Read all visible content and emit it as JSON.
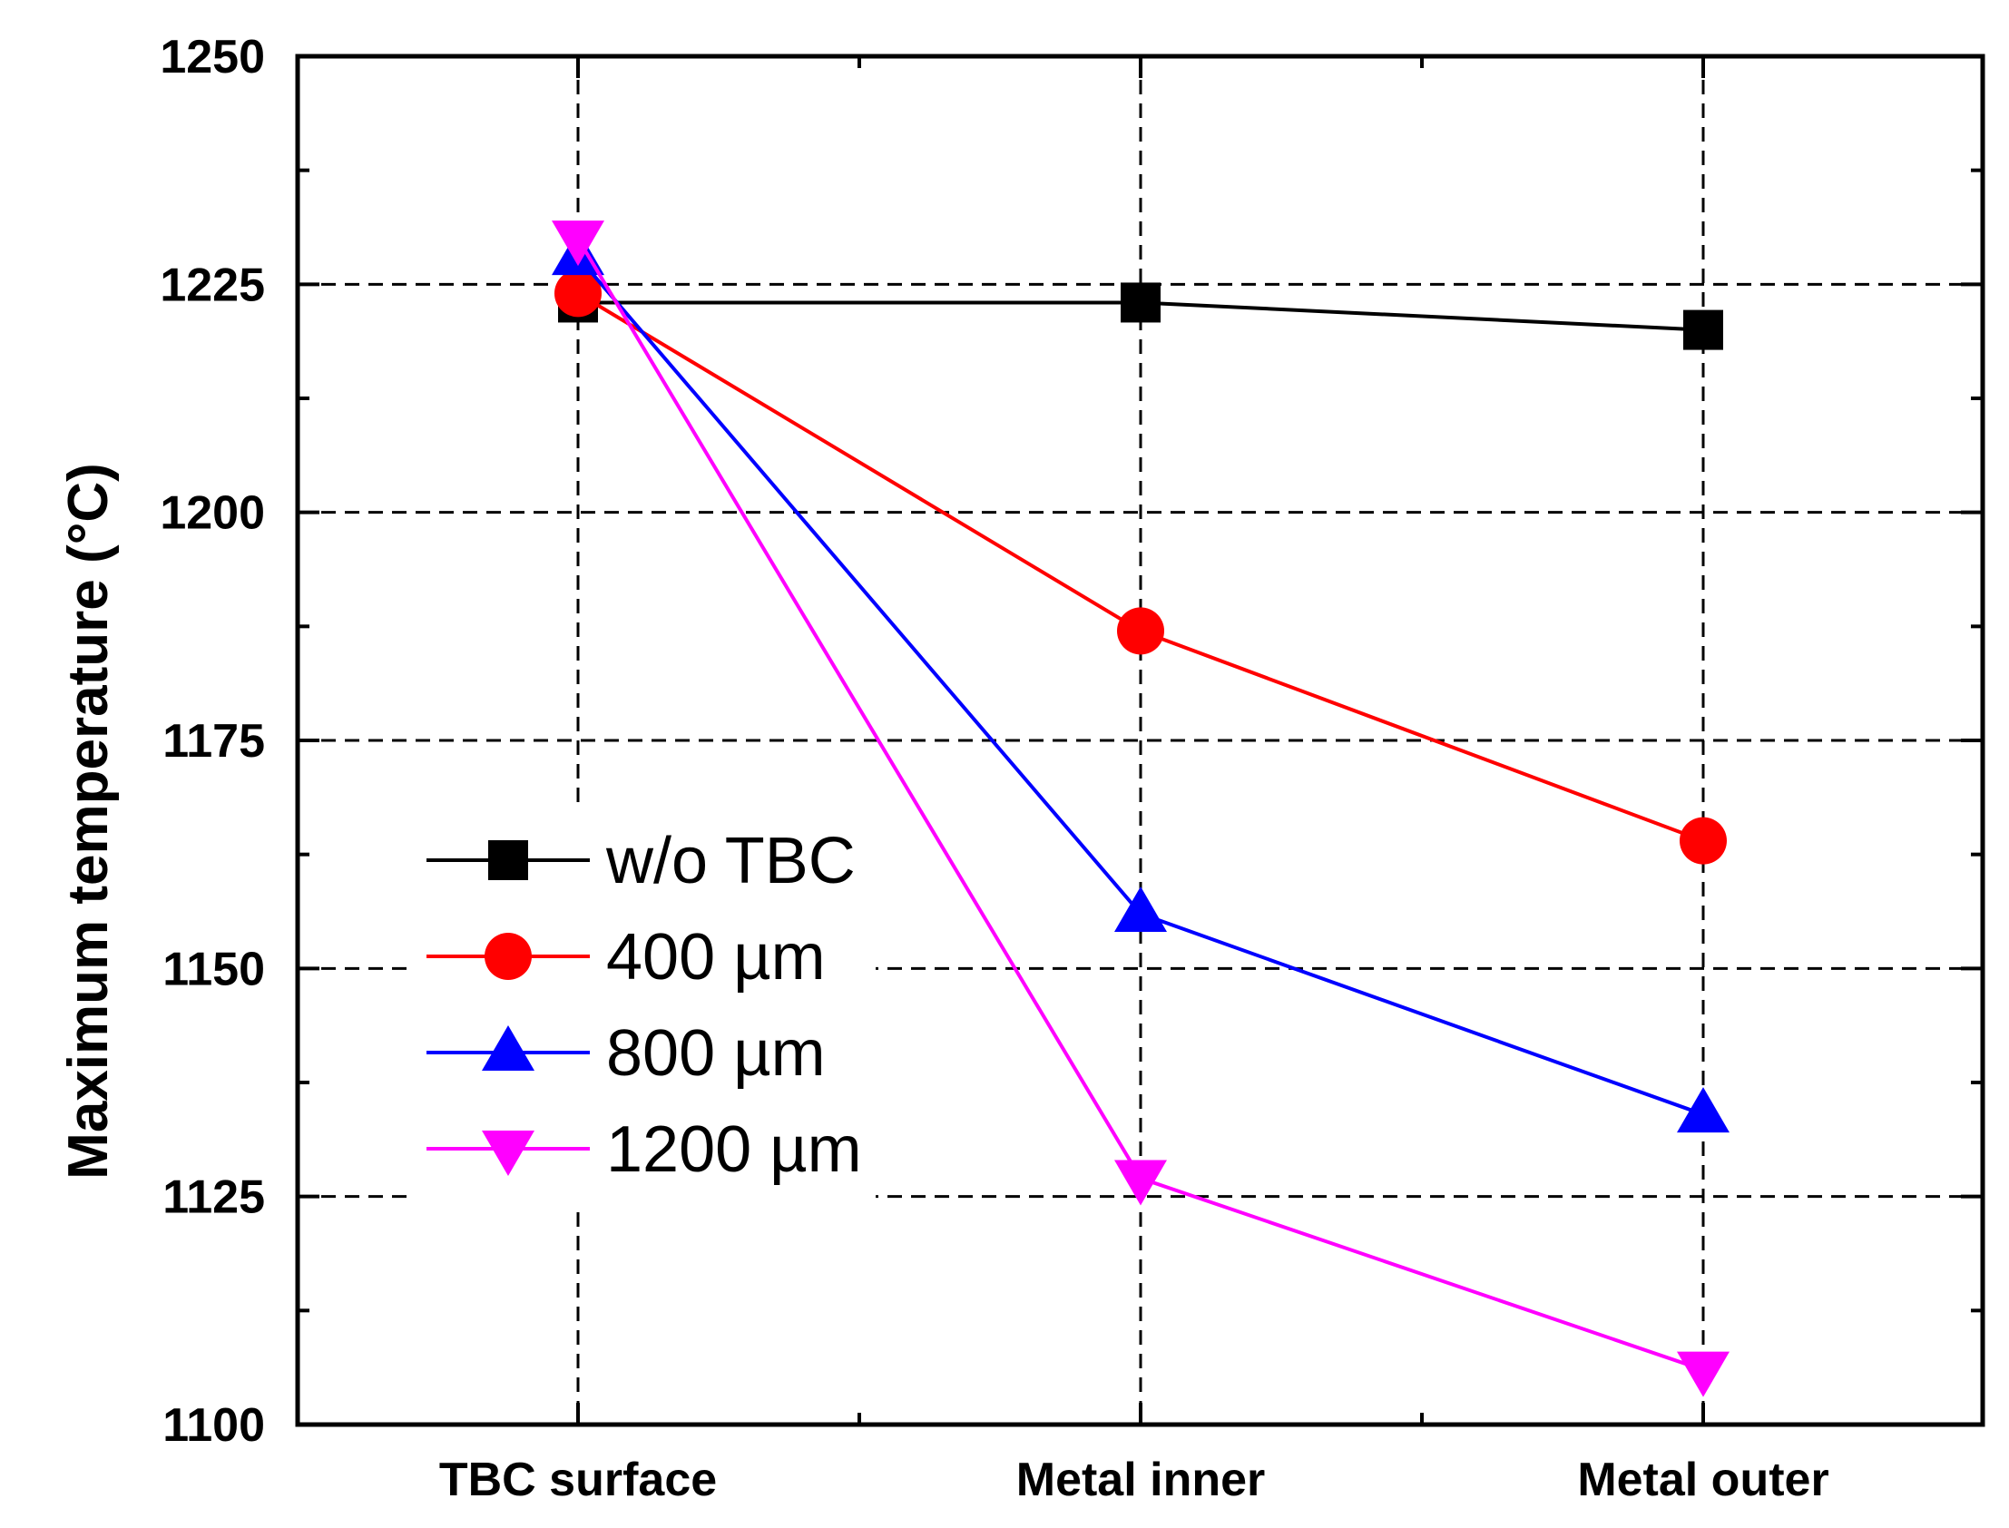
{
  "chart_data": {
    "type": "line",
    "title": "",
    "xlabel": "",
    "ylabel": "Maximum temperature (°C)",
    "categories": [
      "TBC surface",
      "Metal inner",
      "Metal outer"
    ],
    "ylim": [
      1100,
      1250
    ],
    "yticks": [
      "1100",
      "1125",
      "1150",
      "1175",
      "1200",
      "1225",
      "1250"
    ],
    "grid": true,
    "legend_position": "center-left",
    "series": [
      {
        "name": "w/o TBC",
        "color": "#000000",
        "marker": "square",
        "values": [
          1223,
          1223,
          1220
        ]
      },
      {
        "name": "400 µm",
        "color": "#ff0000",
        "marker": "circle",
        "values": [
          1224,
          1187,
          1164
        ]
      },
      {
        "name": "800 µm",
        "color": "#0000ff",
        "marker": "triangle-up",
        "values": [
          1228,
          1156,
          1134
        ]
      },
      {
        "name": "1200 µm",
        "color": "#ff00ff",
        "marker": "triangle-down",
        "values": [
          1230,
          1127,
          1106
        ]
      }
    ]
  }
}
